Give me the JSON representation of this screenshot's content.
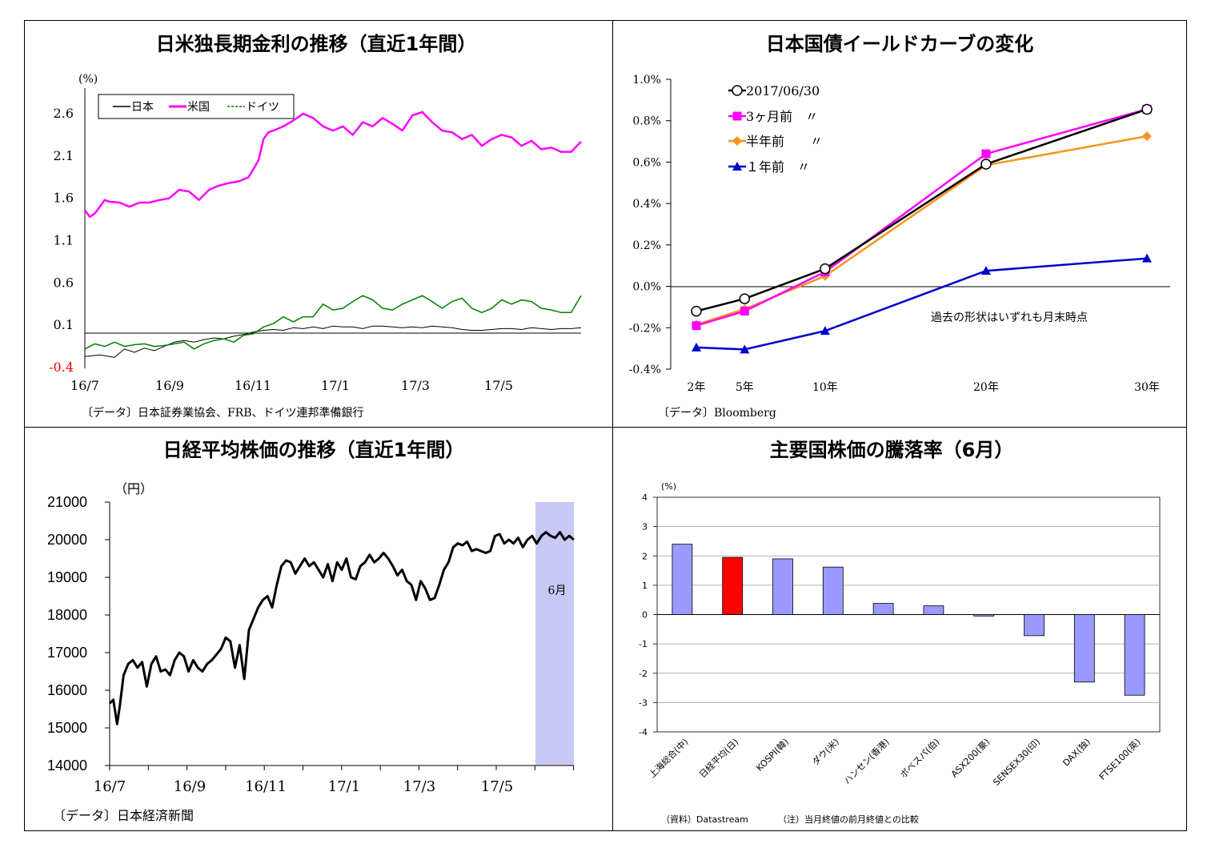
{
  "chart_data": [
    {
      "type": "line",
      "title": "日米独長期金利の推移（直近1年間）",
      "ylabel": "(%)",
      "ylim": [
        -0.4,
        2.6
      ],
      "yticks": [
        "2.6",
        "2.1",
        "1.6",
        "1.1",
        "0.6",
        "0.1",
        "-0.4"
      ],
      "xticks": [
        "16/7",
        "16/9",
        "16/11",
        "17/1",
        "17/3",
        "17/5"
      ],
      "legend_position": "top-left",
      "series": [
        {
          "name": "日本",
          "color": "#000000",
          "x": [
            0,
            3,
            6,
            8,
            10,
            12,
            14,
            16,
            18,
            20,
            22,
            24,
            25,
            26,
            28,
            30,
            32,
            34,
            36,
            38,
            40,
            42,
            44,
            46,
            48,
            50,
            52,
            54,
            56,
            58,
            60,
            62,
            64,
            66,
            68,
            70,
            72,
            74,
            76,
            78,
            80,
            82,
            84,
            86,
            88,
            90,
            92,
            94,
            96,
            98,
            100
          ],
          "values": [
            -0.27,
            -0.25,
            -0.28,
            -0.18,
            -0.22,
            -0.17,
            -0.2,
            -0.15,
            -0.1,
            -0.08,
            -0.1,
            -0.07,
            -0.06,
            -0.05,
            -0.06,
            -0.03,
            -0.01,
            0.02,
            0.04,
            0.05,
            0.04,
            0.07,
            0.06,
            0.08,
            0.06,
            0.09,
            0.08,
            0.08,
            0.06,
            0.09,
            0.09,
            0.08,
            0.07,
            0.08,
            0.07,
            0.09,
            0.08,
            0.07,
            0.05,
            0.04,
            0.04,
            0.05,
            0.06,
            0.06,
            0.05,
            0.07,
            0.06,
            0.05,
            0.06,
            0.06,
            0.07
          ]
        },
        {
          "name": "米国",
          "color": "#FF00FF",
          "x": [
            0,
            1,
            2,
            4,
            5,
            7,
            9,
            11,
            13,
            15,
            17,
            19,
            21,
            23,
            25,
            27,
            29,
            31,
            33,
            35,
            36,
            37,
            38,
            40,
            42,
            44,
            46,
            48,
            50,
            52,
            54,
            56,
            58,
            60,
            62,
            64,
            66,
            68,
            70,
            72,
            74,
            76,
            78,
            80,
            82,
            84,
            86,
            88,
            90,
            92,
            94,
            96,
            98,
            100
          ],
          "values": [
            1.46,
            1.38,
            1.42,
            1.58,
            1.56,
            1.55,
            1.5,
            1.55,
            1.55,
            1.58,
            1.6,
            1.7,
            1.68,
            1.58,
            1.7,
            1.75,
            1.78,
            1.8,
            1.85,
            2.05,
            2.3,
            2.38,
            2.4,
            2.45,
            2.52,
            2.6,
            2.55,
            2.45,
            2.4,
            2.45,
            2.35,
            2.5,
            2.45,
            2.55,
            2.48,
            2.4,
            2.58,
            2.62,
            2.5,
            2.4,
            2.38,
            2.3,
            2.35,
            2.22,
            2.3,
            2.35,
            2.32,
            2.22,
            2.28,
            2.18,
            2.2,
            2.15,
            2.15,
            2.27
          ]
        },
        {
          "name": "ドイツ",
          "color": "#008000",
          "x": [
            0,
            2,
            4,
            6,
            8,
            10,
            12,
            14,
            16,
            18,
            20,
            22,
            24,
            26,
            28,
            30,
            32,
            34,
            36,
            38,
            40,
            42,
            44,
            46,
            48,
            50,
            52,
            54,
            56,
            58,
            60,
            62,
            64,
            66,
            68,
            70,
            72,
            74,
            76,
            78,
            80,
            82,
            84,
            86,
            88,
            90,
            92,
            94,
            96,
            98,
            100
          ],
          "values": [
            -0.18,
            -0.12,
            -0.15,
            -0.1,
            -0.15,
            -0.13,
            -0.12,
            -0.15,
            -0.14,
            -0.12,
            -0.1,
            -0.18,
            -0.12,
            -0.08,
            -0.06,
            -0.1,
            -0.02,
            0.0,
            0.08,
            0.12,
            0.2,
            0.14,
            0.2,
            0.2,
            0.35,
            0.28,
            0.3,
            0.38,
            0.45,
            0.4,
            0.3,
            0.28,
            0.35,
            0.4,
            0.45,
            0.38,
            0.3,
            0.38,
            0.42,
            0.3,
            0.25,
            0.3,
            0.4,
            0.35,
            0.4,
            0.38,
            0.3,
            0.28,
            0.25,
            0.25,
            0.45
          ]
        }
      ],
      "source": "〔データ〕日本証券業協会、FRB、ドイツ連邦準備銀行"
    },
    {
      "type": "line",
      "title": "日本国債イールドカーブの変化",
      "ylim": [
        -0.4,
        1.0
      ],
      "yticks": [
        "1.0%",
        "0.8%",
        "0.6%",
        "0.4%",
        "0.2%",
        "0.0%",
        "-0.2%",
        "-0.4%"
      ],
      "categories": [
        "2年",
        "5年",
        "10年",
        "20年",
        "30年"
      ],
      "x": [
        2,
        5,
        10,
        20,
        30
      ],
      "legend_position": "top-left",
      "series": [
        {
          "name": "2017/06/30",
          "color": "#000000",
          "marker": "open-circle",
          "values": [
            -0.12,
            -0.06,
            0.085,
            0.59,
            0.855
          ]
        },
        {
          "name": "3ヶ月前　〃",
          "color": "#FF00FF",
          "marker": "square",
          "values": [
            -0.19,
            -0.12,
            0.07,
            0.64,
            0.855
          ]
        },
        {
          "name": "半年前　　〃",
          "color": "#F7941D",
          "marker": "diamond",
          "values": [
            -0.185,
            -0.11,
            0.05,
            0.585,
            0.725
          ]
        },
        {
          "name": "１年前　〃",
          "color": "#0000CC",
          "marker": "triangle",
          "values": [
            -0.295,
            -0.305,
            -0.215,
            0.075,
            0.135
          ]
        }
      ],
      "annotation": "過去の形状はいずれも月末時点",
      "source": "〔データ〕Bloomberg"
    },
    {
      "type": "line",
      "title": "日経平均株価の推移（直近1年間）",
      "ylabel": "（円）",
      "ylim": [
        14000,
        21000
      ],
      "yticks": [
        "21000",
        "20000",
        "19000",
        "18000",
        "17000",
        "16000",
        "15000",
        "14000"
      ],
      "xticks": [
        "16/7",
        "16/9",
        "16/11",
        "17/1",
        "17/3",
        "17/5"
      ],
      "highlight_label": "6月",
      "highlight_color": "#C8C8F5",
      "series": [
        {
          "name": "日経平均株価",
          "color": "#000000",
          "x": [
            0,
            0.8,
            1.6,
            2.2,
            3,
            4,
            5,
            6,
            7,
            8,
            9,
            10,
            11,
            12,
            13,
            14,
            15,
            16,
            17,
            18,
            19,
            20,
            21,
            22,
            23,
            24,
            25,
            26,
            27,
            28,
            29,
            30,
            31,
            32,
            33,
            34,
            35,
            36,
            37,
            38,
            39,
            40,
            41,
            42,
            43,
            44,
            45,
            46,
            47,
            48,
            49,
            50,
            51,
            52,
            53,
            54,
            55,
            56,
            57,
            58,
            59,
            60,
            61,
            62,
            63,
            64,
            65,
            66,
            67,
            68,
            69,
            70,
            71,
            72,
            73,
            74,
            75,
            76,
            77,
            78,
            79,
            80,
            81,
            82,
            83,
            84,
            85,
            86,
            87,
            88,
            89,
            90,
            91,
            92,
            93,
            94,
            95,
            96,
            97,
            98,
            99,
            100
          ],
          "values": [
            15650,
            15750,
            15100,
            15600,
            16400,
            16700,
            16800,
            16600,
            16750,
            16100,
            16700,
            16900,
            16500,
            16550,
            16400,
            16800,
            17000,
            16900,
            16500,
            16800,
            16600,
            16500,
            16700,
            16800,
            16950,
            17100,
            17400,
            17300,
            16600,
            17200,
            16300,
            17600,
            17900,
            18200,
            18400,
            18500,
            18200,
            18800,
            19300,
            19450,
            19400,
            19100,
            19300,
            19500,
            19300,
            19400,
            19200,
            19000,
            19350,
            18900,
            19400,
            19200,
            19500,
            19000,
            18950,
            19300,
            19400,
            19600,
            19400,
            19500,
            19650,
            19500,
            19300,
            19050,
            19200,
            18900,
            18800,
            18400,
            18900,
            18700,
            18400,
            18450,
            18800,
            19200,
            19400,
            19800,
            19900,
            19850,
            19950,
            19700,
            19750,
            19700,
            19650,
            19700,
            20100,
            20150,
            19900,
            20000,
            19900,
            20050,
            19800,
            20000,
            20100,
            19900,
            20100,
            20200,
            20100,
            20050,
            20200,
            20000,
            20100,
            20000
          ]
        }
      ],
      "source": "〔データ〕日本経済新聞"
    },
    {
      "type": "bar",
      "title": "主要国株価の騰落率（6月）",
      "ylabel": "(%)",
      "ylim": [
        -4,
        4
      ],
      "yticks": [
        "4",
        "3",
        "2",
        "1",
        "0",
        "-1",
        "-2",
        "-3",
        "-4"
      ],
      "categories": [
        "上海総合(中)",
        "日経平均(日)",
        "KOSPI(韓)",
        "ダウ(米)",
        "ハンセン(香港)",
        "ボベスパ(伯)",
        "ASX200(豪)",
        "SENSEX30(印)",
        "DAX(独)",
        "FTSE100(英)"
      ],
      "values": [
        2.4,
        1.95,
        1.9,
        1.62,
        0.38,
        0.3,
        -0.05,
        -0.72,
        -2.3,
        -2.75
      ],
      "bar_color": "#9999FF",
      "highlight_color": "#FF0000",
      "highlight_index": 1,
      "source": "（資料）Datastream",
      "note": "（注）当月終値の前月終値との比較"
    }
  ]
}
